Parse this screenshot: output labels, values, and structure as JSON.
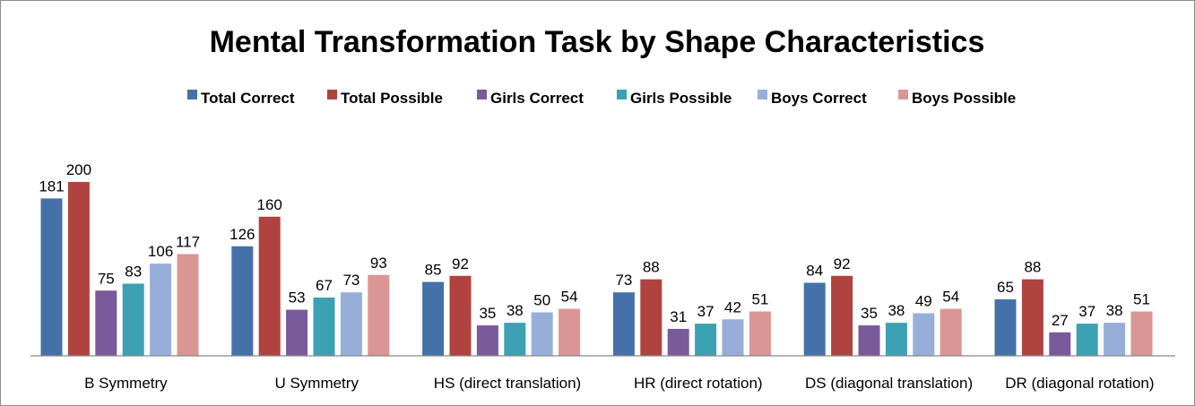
{
  "chart_data": {
    "type": "bar",
    "title": "Mental Transformation Task by Shape Characteristics",
    "xlabel": "",
    "ylabel": "",
    "ylim": [
      0,
      200
    ],
    "grid": false,
    "legend_position": "top",
    "categories": [
      "B Symmetry",
      "U Symmetry",
      "HS (direct translation)",
      "HR (direct rotation)",
      "DS (diagonal translation)",
      "DR (diagonal rotation)"
    ],
    "series": [
      {
        "name": "Total Correct",
        "color": "#4472a8",
        "values": [
          181,
          126,
          85,
          73,
          84,
          65
        ]
      },
      {
        "name": "Total Possible",
        "color": "#b0423f",
        "values": [
          200,
          160,
          92,
          88,
          92,
          88
        ]
      },
      {
        "name": "Girls Correct",
        "color": "#7a5a9a",
        "values": [
          75,
          53,
          35,
          31,
          35,
          27
        ]
      },
      {
        "name": "Girls Possible",
        "color": "#3ba1b3",
        "values": [
          83,
          67,
          38,
          37,
          38,
          37
        ]
      },
      {
        "name": "Boys Correct",
        "color": "#97aed8",
        "values": [
          106,
          73,
          50,
          42,
          49,
          38
        ]
      },
      {
        "name": "Boys Possible",
        "color": "#d99694",
        "values": [
          117,
          93,
          54,
          51,
          54,
          51
        ]
      }
    ]
  }
}
